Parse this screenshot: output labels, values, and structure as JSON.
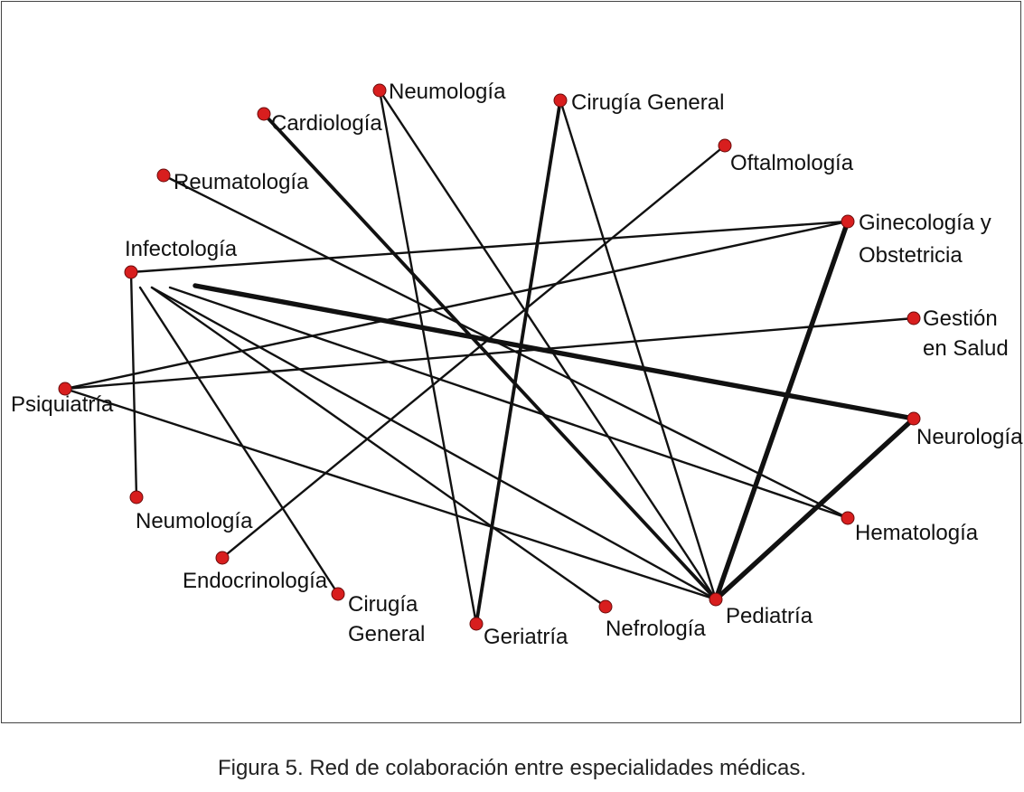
{
  "caption": "Figura 5. Red de colaboración entre especialidades médicas.",
  "colors": {
    "node_fill": "#d81e1e",
    "node_stroke": "#6a0c0c",
    "edge": "#111111",
    "frame": "#444444"
  },
  "nodes": [
    {
      "id": "neumologia-top",
      "lines": [
        "Neumología"
      ]
    },
    {
      "id": "cardiologia",
      "lines": [
        "Cardiología"
      ]
    },
    {
      "id": "cirugia-general-top",
      "lines": [
        "Cirugía General"
      ]
    },
    {
      "id": "oftalmologia",
      "lines": [
        "Oftalmología"
      ]
    },
    {
      "id": "reumatologia",
      "lines": [
        "Reumatología"
      ]
    },
    {
      "id": "ginecologia",
      "lines": [
        "Ginecología y",
        "Obstetricia"
      ]
    },
    {
      "id": "infectologia",
      "lines": [
        "Infectología"
      ]
    },
    {
      "id": "gestion",
      "lines": [
        "Gestión",
        "en Salud"
      ]
    },
    {
      "id": "psiquiatria",
      "lines": [
        "Psiquiatría"
      ]
    },
    {
      "id": "neurologia",
      "lines": [
        "Neurología"
      ]
    },
    {
      "id": "neumologia-bottom",
      "lines": [
        "Neumología"
      ]
    },
    {
      "id": "hematologia",
      "lines": [
        "Hematología"
      ]
    },
    {
      "id": "endocrinologia",
      "lines": [
        "Endocrinología"
      ]
    },
    {
      "id": "cirugia-general-bottom",
      "lines": [
        "Cirugía",
        "General"
      ]
    },
    {
      "id": "nefrologia",
      "lines": [
        "Nefrología"
      ]
    },
    {
      "id": "geriatria",
      "lines": [
        "Geriatría"
      ]
    },
    {
      "id": "pediatria",
      "lines": [
        "Pediatría"
      ]
    }
  ],
  "edges": [
    {
      "from": "infectologia",
      "to": "ginecologia",
      "weight": 1
    },
    {
      "from": "infectologia",
      "to": "neumologia-bottom",
      "weight": 1
    },
    {
      "from": "infectologia",
      "to": "cirugia-general-bottom",
      "weight": 1
    },
    {
      "from": "infectologia",
      "to": "nefrologia",
      "weight": 1
    },
    {
      "from": "infectologia",
      "to": "pediatria",
      "weight": 1
    },
    {
      "from": "infectologia",
      "to": "hematologia",
      "weight": 1
    },
    {
      "from": "infectologia",
      "to": "neurologia",
      "weight": 3
    },
    {
      "from": "cardiologia",
      "to": "pediatria",
      "weight": 2
    },
    {
      "from": "neumologia-top",
      "to": "geriatria",
      "weight": 1
    },
    {
      "from": "neumologia-top",
      "to": "pediatria",
      "weight": 1
    },
    {
      "from": "cirugia-general-top",
      "to": "geriatria",
      "weight": 2
    },
    {
      "from": "cirugia-general-top",
      "to": "pediatria",
      "weight": 1
    },
    {
      "from": "oftalmologia",
      "to": "endocrinologia",
      "weight": 1
    },
    {
      "from": "reumatologia",
      "to": "hematologia",
      "weight": 1
    },
    {
      "from": "psiquiatria",
      "to": "ginecologia",
      "weight": 1
    },
    {
      "from": "psiquiatria",
      "to": "gestion",
      "weight": 1
    },
    {
      "from": "psiquiatria",
      "to": "pediatria",
      "weight": 1
    },
    {
      "from": "ginecologia",
      "to": "pediatria",
      "weight": 3
    },
    {
      "from": "neurologia",
      "to": "pediatria",
      "weight": 3
    }
  ]
}
